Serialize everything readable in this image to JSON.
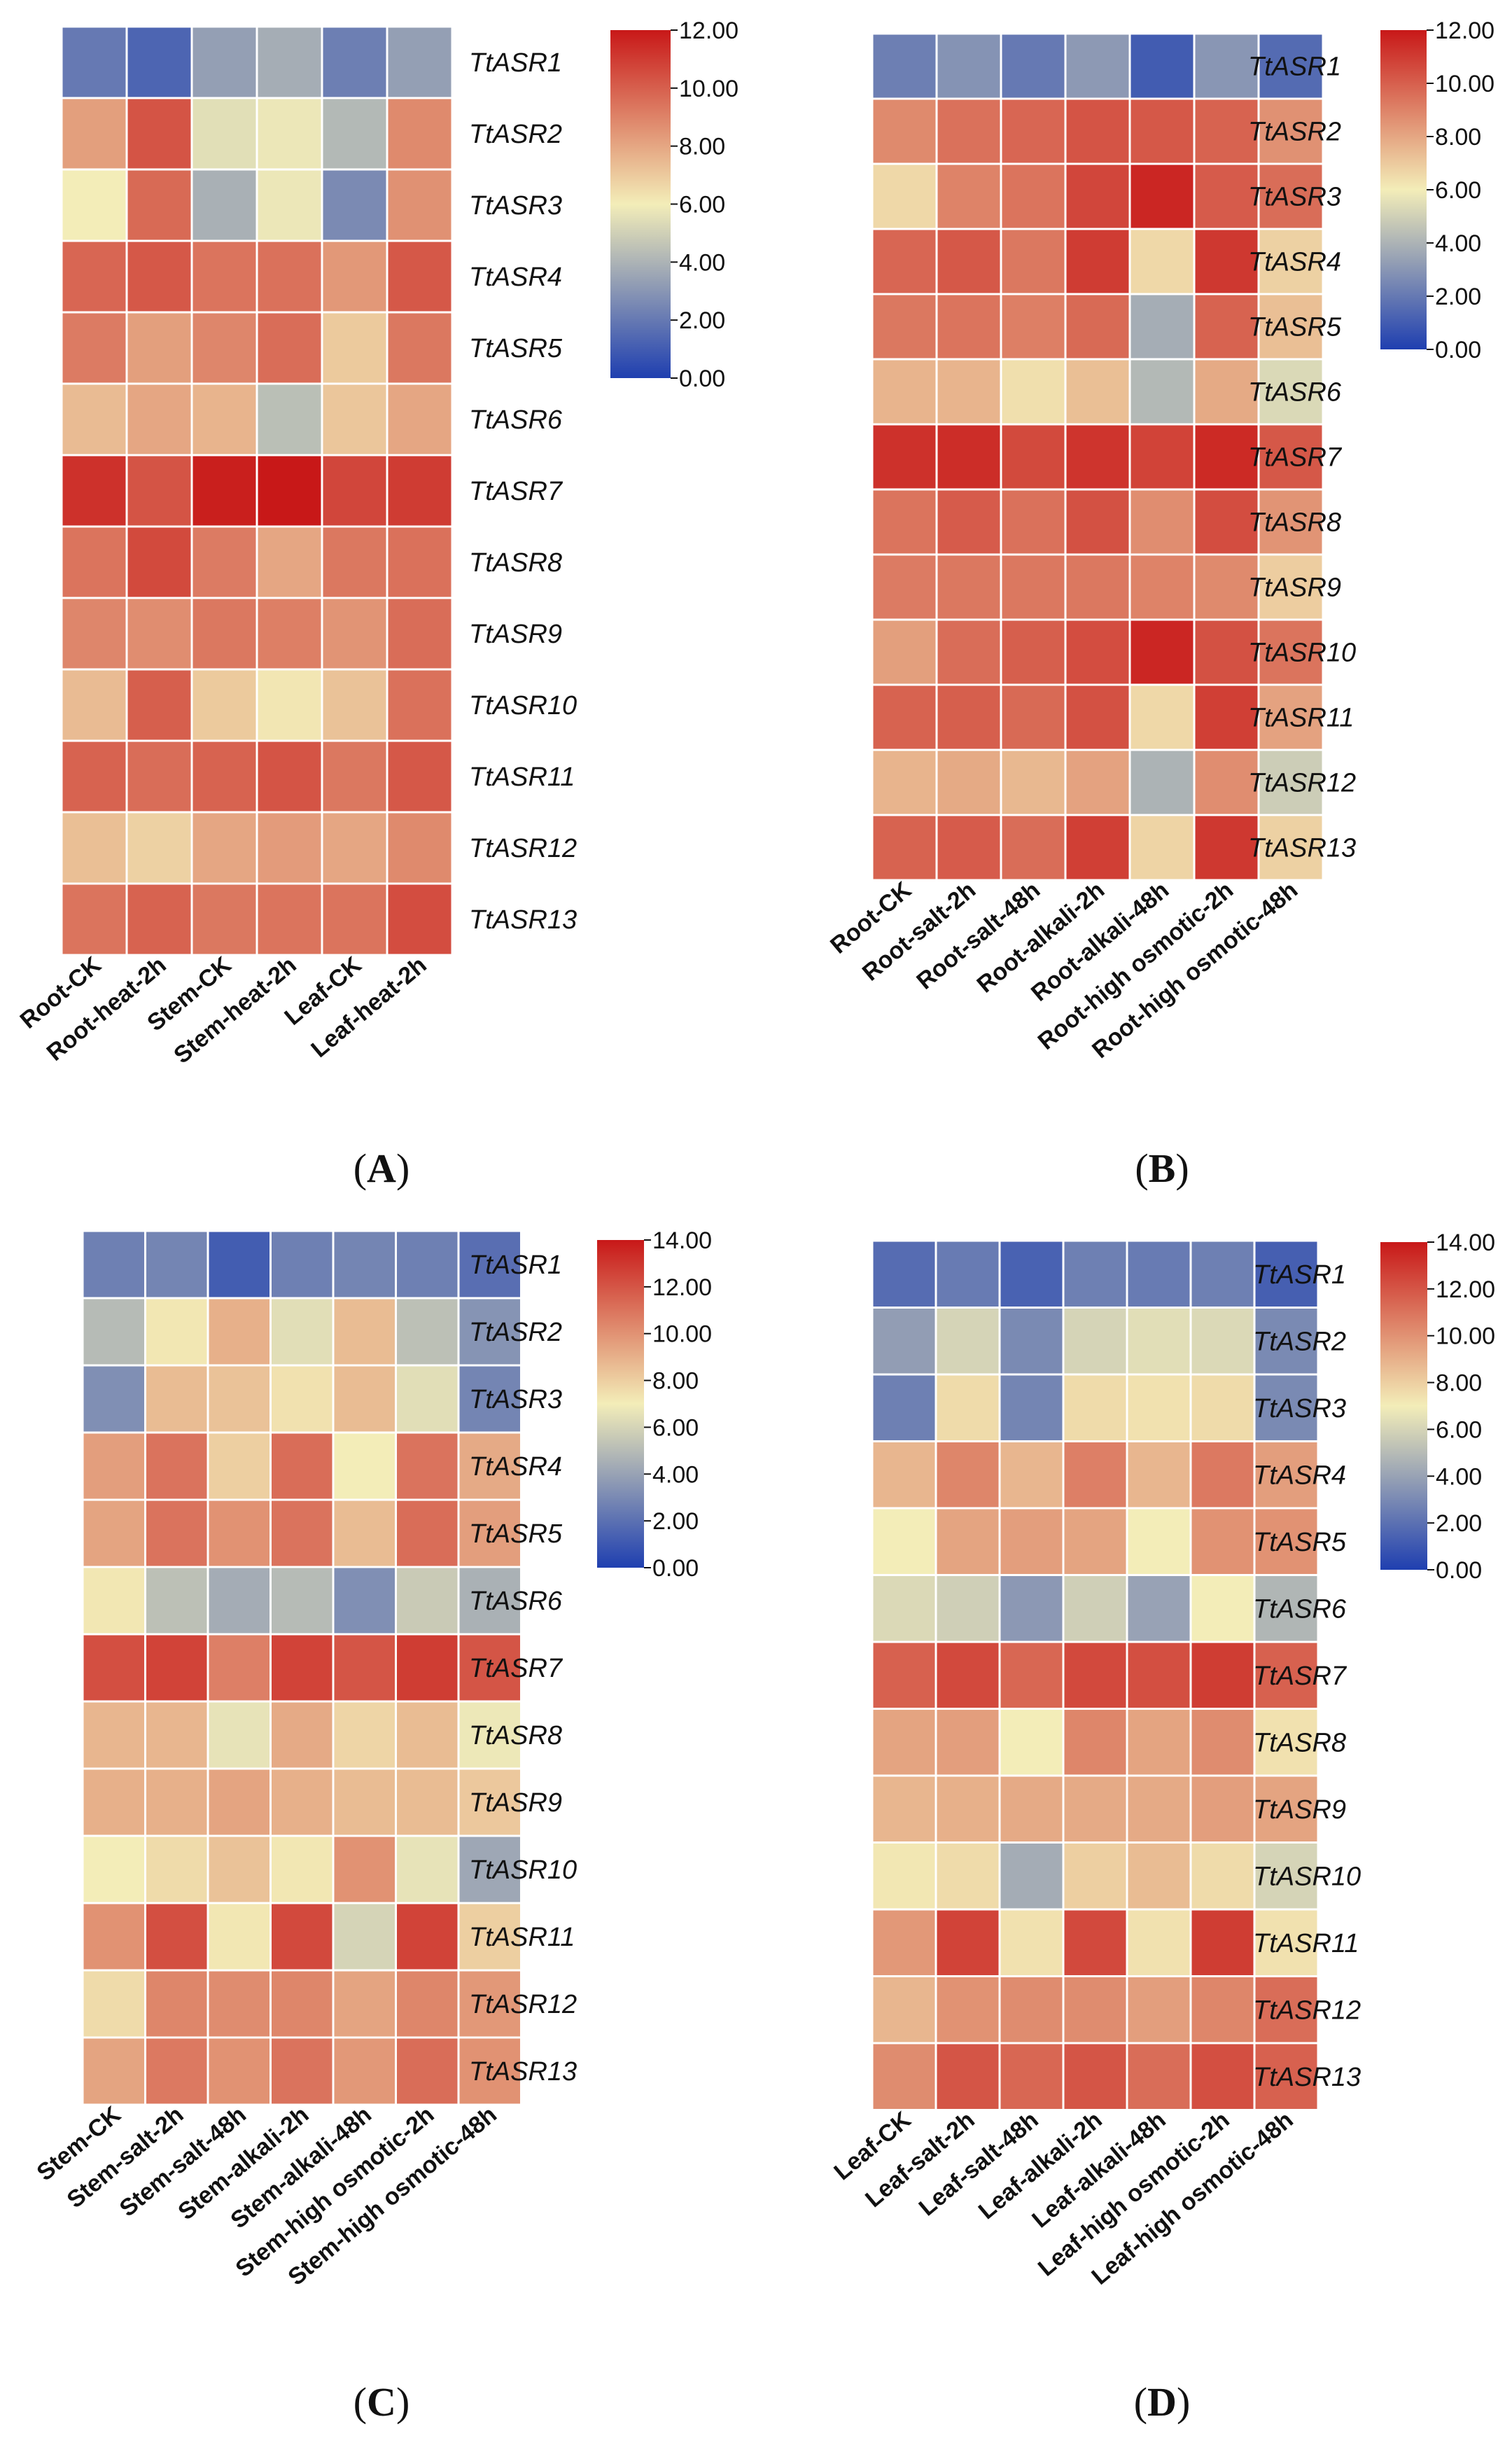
{
  "colors": {
    "low": "#1f3fb0",
    "mid": "#f3edb8",
    "high": "#c81818",
    "cell_border": "#ffffff"
  },
  "chart_data": [
    {
      "type": "heatmap",
      "panel": "A",
      "columns": [
        "Root-CK",
        "Root-heat-2h",
        "Stem-CK",
        "Stem-heat-2h",
        "Leaf-CK",
        "Leaf-heat-2h"
      ],
      "rows": [
        "TtASR1",
        "TtASR2",
        "TtASR3",
        "TtASR4",
        "TtASR5",
        "TtASR6",
        "TtASR7",
        "TtASR8",
        "TtASR9",
        "TtASR10",
        "TtASR11",
        "TtASR12",
        "TtASR13"
      ],
      "values": [
        [
          2.0,
          1.3,
          3.3,
          3.8,
          2.2,
          3.3
        ],
        [
          8.2,
          10.3,
          5.5,
          5.8,
          4.2,
          8.8
        ],
        [
          6.0,
          9.7,
          3.9,
          5.8,
          2.6,
          8.6
        ],
        [
          9.8,
          10.2,
          9.4,
          9.5,
          8.4,
          10.2
        ],
        [
          9.2,
          8.2,
          8.9,
          9.6,
          7.0,
          9.3
        ],
        [
          7.4,
          8.0,
          7.6,
          4.4,
          7.1,
          8.0
        ],
        [
          11.3,
          10.3,
          11.8,
          12.0,
          10.7,
          11.0
        ],
        [
          9.4,
          10.6,
          9.2,
          8.0,
          9.3,
          9.5
        ],
        [
          8.9,
          8.7,
          9.3,
          9.1,
          8.5,
          9.6
        ],
        [
          7.4,
          10.0,
          7.0,
          6.2,
          7.2,
          9.5
        ],
        [
          9.9,
          9.6,
          9.9,
          10.3,
          9.3,
          10.2
        ],
        [
          7.3,
          6.8,
          8.0,
          8.3,
          8.0,
          8.8
        ],
        [
          9.4,
          9.9,
          9.3,
          9.4,
          9.4,
          10.5
        ]
      ],
      "colorbar": {
        "min": 0,
        "max": 12,
        "ticks": [
          "0.00",
          "2.00",
          "4.00",
          "6.00",
          "8.00",
          "10.00",
          "12.00"
        ]
      }
    },
    {
      "type": "heatmap",
      "panel": "B",
      "columns": [
        "Root-CK",
        "Root-salt-2h",
        "Root-salt-48h",
        "Root-alkali-2h",
        "Root-alkali-48h",
        "Root-high osmotic-2h",
        "Root-high osmotic-48h"
      ],
      "rows": [
        "TtASR1",
        "TtASR2",
        "TtASR3",
        "TtASR4",
        "TtASR5",
        "TtASR6",
        "TtASR7",
        "TtASR8",
        "TtASR9",
        "TtASR10",
        "TtASR11",
        "TtASR12",
        "TtASR13"
      ],
      "values": [
        [
          2.2,
          2.9,
          2.0,
          3.1,
          1.0,
          3.0,
          1.5
        ],
        [
          8.8,
          9.5,
          9.8,
          10.3,
          10.2,
          9.9,
          8.6
        ],
        [
          6.6,
          9.0,
          9.4,
          10.7,
          11.6,
          10.1,
          9.6
        ],
        [
          9.8,
          10.2,
          9.3,
          11.0,
          6.6,
          11.1,
          6.8
        ],
        [
          9.3,
          9.4,
          9.1,
          9.7,
          3.8,
          9.9,
          7.3
        ],
        [
          7.6,
          7.6,
          6.4,
          7.3,
          4.2,
          7.9,
          5.3
        ],
        [
          11.3,
          11.4,
          10.6,
          11.2,
          10.8,
          11.5,
          10.2
        ],
        [
          9.4,
          10.1,
          9.5,
          10.4,
          8.7,
          10.5,
          8.5
        ],
        [
          9.2,
          9.3,
          9.3,
          9.3,
          9.0,
          8.8,
          6.9
        ],
        [
          8.2,
          9.6,
          10.0,
          10.5,
          11.6,
          10.4,
          9.4
        ],
        [
          9.9,
          10.0,
          9.7,
          10.4,
          6.6,
          10.9,
          8.1
        ],
        [
          7.6,
          7.9,
          7.5,
          8.1,
          4.0,
          8.7,
          4.9
        ],
        [
          9.9,
          10.1,
          9.6,
          10.9,
          6.7,
          11.1,
          6.8
        ]
      ],
      "colorbar": {
        "min": 0,
        "max": 12,
        "ticks": [
          "0.00",
          "2.00",
          "4.00",
          "6.00",
          "8.00",
          "10.00",
          "12.00"
        ]
      }
    },
    {
      "type": "heatmap",
      "panel": "C",
      "columns": [
        "Stem-CK",
        "Stem-salt-2h",
        "Stem-salt-48h",
        "Stem-alkali-2h",
        "Stem-alkali-48h",
        "Stem-high osmotic-2h",
        "Stem-high osmotic-48h"
      ],
      "rows": [
        "TtASR1",
        "TtASR2",
        "TtASR3",
        "TtASR4",
        "TtASR5",
        "TtASR6",
        "TtASR7",
        "TtASR8",
        "TtASR9",
        "TtASR10",
        "TtASR11",
        "TtASR12",
        "TtASR13"
      ],
      "values": [
        [
          2.6,
          2.8,
          1.2,
          2.6,
          2.8,
          2.6,
          1.9
        ],
        [
          5.0,
          7.2,
          9.0,
          6.4,
          8.6,
          5.2,
          3.4
        ],
        [
          3.2,
          8.6,
          8.4,
          7.4,
          8.6,
          6.4,
          2.8
        ],
        [
          9.6,
          11.0,
          8.0,
          11.2,
          7.0,
          11.0,
          9.2
        ],
        [
          9.4,
          11.0,
          10.0,
          11.0,
          8.6,
          11.2,
          9.6
        ],
        [
          7.2,
          5.2,
          4.4,
          5.0,
          3.2,
          5.6,
          4.6
        ],
        [
          12.2,
          12.6,
          10.6,
          12.6,
          12.0,
          12.8,
          12.0
        ],
        [
          8.8,
          8.8,
          6.6,
          9.2,
          7.8,
          8.6,
          6.8
        ],
        [
          9.0,
          9.0,
          9.4,
          9.0,
          8.6,
          8.6,
          8.2
        ],
        [
          7.0,
          7.6,
          8.4,
          7.2,
          10.0,
          6.6,
          4.2
        ],
        [
          10.0,
          12.2,
          7.2,
          12.4,
          6.0,
          12.6,
          8.0
        ],
        [
          7.6,
          10.4,
          10.2,
          10.4,
          9.4,
          10.4,
          9.8
        ],
        [
          9.4,
          10.8,
          10.0,
          11.0,
          9.8,
          11.2,
          10.0
        ]
      ],
      "colorbar": {
        "min": 0,
        "max": 14,
        "ticks": [
          "0.00",
          "2.00",
          "4.00",
          "6.00",
          "8.00",
          "10.00",
          "12.00",
          "14.00"
        ]
      }
    },
    {
      "type": "heatmap",
      "panel": "D",
      "columns": [
        "Leaf-CK",
        "Leaf-salt-2h",
        "Leaf-salt-48h",
        "Leaf-alkali-2h",
        "Leaf-alkali-48h",
        "Leaf-high osmotic-2h",
        "Leaf-high osmotic-48h"
      ],
      "rows": [
        "TtASR1",
        "TtASR2",
        "TtASR3",
        "TtASR4",
        "TtASR5",
        "TtASR6",
        "TtASR7",
        "TtASR8",
        "TtASR9",
        "TtASR10",
        "TtASR11",
        "TtASR12",
        "TtASR13"
      ],
      "values": [
        [
          1.8,
          2.4,
          1.4,
          2.6,
          2.4,
          2.6,
          1.3
        ],
        [
          3.8,
          6.0,
          3.0,
          6.0,
          6.4,
          6.2,
          3.0
        ],
        [
          2.6,
          7.6,
          2.8,
          7.6,
          7.4,
          7.6,
          3.0
        ],
        [
          8.8,
          10.4,
          8.8,
          10.6,
          8.8,
          10.8,
          9.6
        ],
        [
          7.0,
          9.4,
          9.6,
          9.4,
          7.0,
          10.0,
          10.0
        ],
        [
          6.2,
          5.8,
          3.6,
          5.8,
          4.0,
          7.0,
          4.8
        ],
        [
          11.6,
          12.4,
          11.4,
          12.4,
          12.2,
          12.8,
          11.6
        ],
        [
          9.4,
          9.6,
          7.0,
          10.4,
          9.4,
          10.2,
          7.4
        ],
        [
          8.8,
          9.0,
          9.2,
          9.2,
          9.2,
          9.6,
          9.4
        ],
        [
          7.2,
          7.6,
          4.4,
          8.0,
          8.6,
          7.6,
          6.0
        ],
        [
          9.8,
          12.6,
          7.4,
          12.4,
          7.4,
          12.8,
          7.4
        ],
        [
          8.8,
          10.0,
          10.2,
          10.2,
          9.6,
          10.4,
          11.2
        ],
        [
          10.2,
          12.0,
          11.4,
          12.0,
          11.2,
          12.2,
          11.6
        ]
      ],
      "colorbar": {
        "min": 0,
        "max": 14,
        "ticks": [
          "0.00",
          "2.00",
          "4.00",
          "6.00",
          "8.00",
          "10.00",
          "12.00",
          "14.00"
        ]
      }
    }
  ],
  "panel_labels": {
    "A": {
      "open": "(",
      "letter": "A",
      "close": ")"
    },
    "B": {
      "open": "(",
      "letter": "B",
      "close": ")"
    },
    "C": {
      "open": "(",
      "letter": "C",
      "close": ")"
    },
    "D": {
      "open": "(",
      "letter": "D",
      "close": ")"
    }
  }
}
